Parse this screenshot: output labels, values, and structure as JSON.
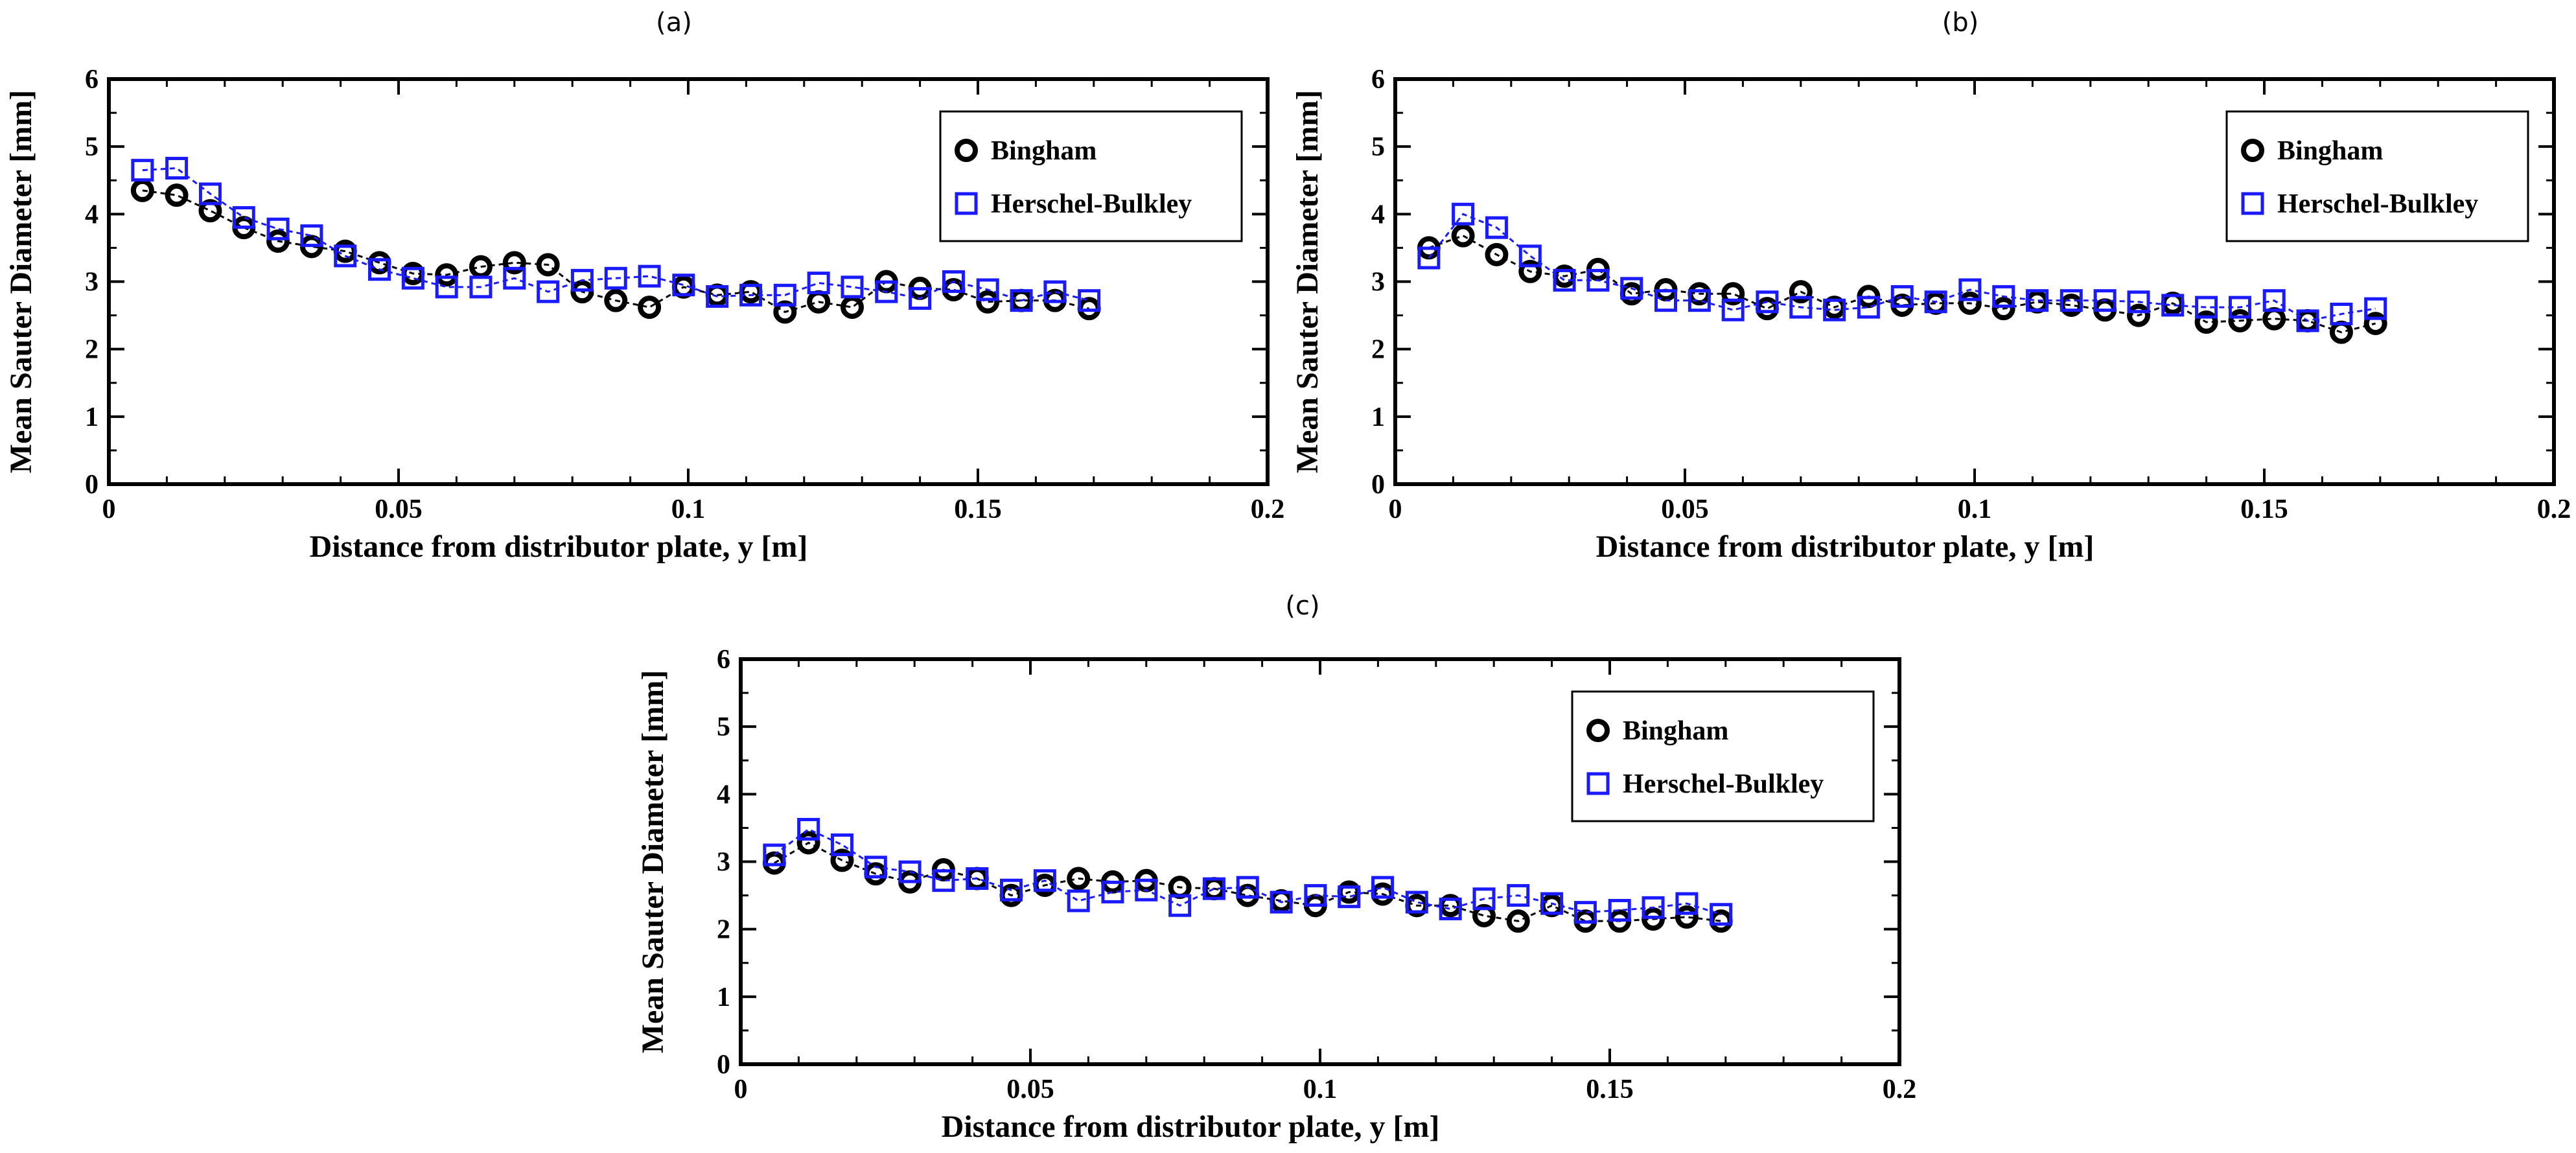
{
  "panels": [
    {
      "label": "(a)"
    },
    {
      "label": "(b)"
    },
    {
      "label": "(c)"
    }
  ],
  "colors": {
    "bingham": "#000000",
    "herschel_bulkley": "#1a1aff",
    "axis": "#000000"
  },
  "chart_data": [
    {
      "type": "scatter",
      "title": "(a)",
      "xlabel": "Distance from distributor plate, y [m]",
      "ylabel": "Mean Sauter Diameter [mm]",
      "xlim": [
        0,
        0.2
      ],
      "ylim": [
        0,
        6
      ],
      "xticks": [
        "0",
        "0.05",
        "0.1",
        "0.15",
        "0.2"
      ],
      "yticks": [
        "0",
        "1",
        "2",
        "3",
        "4",
        "5",
        "6"
      ],
      "legend_position": "top-right",
      "series": [
        {
          "name": "Bingham",
          "marker": "circle",
          "x": [
            0.0058,
            0.0117,
            0.0175,
            0.0233,
            0.0292,
            0.035,
            0.0408,
            0.0467,
            0.0525,
            0.0583,
            0.0642,
            0.07,
            0.0758,
            0.0817,
            0.0875,
            0.0933,
            0.0992,
            0.105,
            0.1108,
            0.1167,
            0.1225,
            0.1283,
            0.1342,
            0.14,
            0.1458,
            0.1517,
            0.1575,
            0.1633,
            0.1692
          ],
          "y": [
            4.35,
            4.28,
            4.05,
            3.8,
            3.6,
            3.52,
            3.45,
            3.28,
            3.12,
            3.1,
            3.22,
            3.28,
            3.25,
            2.85,
            2.72,
            2.62,
            2.92,
            2.8,
            2.85,
            2.55,
            2.7,
            2.62,
            3.0,
            2.9,
            2.88,
            2.7,
            2.72,
            2.72,
            2.6
          ]
        },
        {
          "name": "Herschel-Bulkley",
          "marker": "square",
          "x": [
            0.0058,
            0.0117,
            0.0175,
            0.0233,
            0.0292,
            0.035,
            0.0408,
            0.0467,
            0.0525,
            0.0583,
            0.0642,
            0.07,
            0.0758,
            0.0817,
            0.0875,
            0.0933,
            0.0992,
            0.105,
            0.1108,
            0.1167,
            0.1225,
            0.1283,
            0.1342,
            0.14,
            0.1458,
            0.1517,
            0.1575,
            0.1633,
            0.1692
          ],
          "y": [
            4.65,
            4.68,
            4.3,
            3.95,
            3.78,
            3.68,
            3.38,
            3.18,
            3.05,
            2.92,
            2.92,
            3.05,
            2.85,
            3.02,
            3.05,
            3.08,
            2.95,
            2.78,
            2.8,
            2.8,
            2.98,
            2.92,
            2.85,
            2.75,
            3.0,
            2.88,
            2.72,
            2.85,
            2.72
          ]
        }
      ]
    },
    {
      "type": "scatter",
      "title": "(b)",
      "xlabel": "Distance from distributor plate, y [m]",
      "ylabel": "Mean Sauter Diameter [mm]",
      "xlim": [
        0,
        0.2
      ],
      "ylim": [
        0,
        6
      ],
      "xticks": [
        "0",
        "0.05",
        "0.1",
        "0.15",
        "0.2"
      ],
      "yticks": [
        "0",
        "1",
        "2",
        "3",
        "4",
        "5",
        "6"
      ],
      "legend_position": "top-right",
      "series": [
        {
          "name": "Bingham",
          "marker": "circle",
          "x": [
            0.0058,
            0.0117,
            0.0175,
            0.0233,
            0.0292,
            0.035,
            0.0408,
            0.0467,
            0.0525,
            0.0583,
            0.0642,
            0.07,
            0.0758,
            0.0817,
            0.0875,
            0.0933,
            0.0992,
            0.105,
            0.1108,
            0.1167,
            0.1225,
            0.1283,
            0.1342,
            0.14,
            0.1458,
            0.1517,
            0.1575,
            0.1633,
            0.1692
          ],
          "y": [
            3.5,
            3.68,
            3.4,
            3.15,
            3.08,
            3.18,
            2.82,
            2.88,
            2.82,
            2.82,
            2.6,
            2.85,
            2.62,
            2.78,
            2.65,
            2.68,
            2.68,
            2.6,
            2.7,
            2.65,
            2.58,
            2.5,
            2.68,
            2.4,
            2.42,
            2.45,
            2.42,
            2.25,
            2.38
          ]
        },
        {
          "name": "Herschel-Bulkley",
          "marker": "square",
          "x": [
            0.0058,
            0.0117,
            0.0175,
            0.0233,
            0.0292,
            0.035,
            0.0408,
            0.0467,
            0.0525,
            0.0583,
            0.0642,
            0.07,
            0.0758,
            0.0817,
            0.0875,
            0.0933,
            0.0992,
            0.105,
            0.1108,
            0.1167,
            0.1225,
            0.1283,
            0.1342,
            0.14,
            0.1458,
            0.1517,
            0.1575,
            0.1633,
            0.1692
          ],
          "y": [
            3.35,
            4.0,
            3.8,
            3.38,
            3.02,
            3.02,
            2.9,
            2.72,
            2.72,
            2.58,
            2.7,
            2.62,
            2.58,
            2.62,
            2.78,
            2.7,
            2.88,
            2.78,
            2.72,
            2.72,
            2.72,
            2.7,
            2.65,
            2.62,
            2.62,
            2.72,
            2.42,
            2.52,
            2.6
          ]
        }
      ]
    },
    {
      "type": "scatter",
      "title": "(c)",
      "xlabel": "Distance from distributor plate, y [m]",
      "ylabel": "Mean Sauter Diameter [mm]",
      "xlim": [
        0,
        0.2
      ],
      "ylim": [
        0,
        6
      ],
      "xticks": [
        "0",
        "0.05",
        "0.1",
        "0.15",
        "0.2"
      ],
      "yticks": [
        "0",
        "1",
        "2",
        "3",
        "4",
        "5",
        "6"
      ],
      "legend_position": "top-right",
      "series": [
        {
          "name": "Bingham",
          "marker": "circle",
          "x": [
            0.0058,
            0.0117,
            0.0175,
            0.0233,
            0.0292,
            0.035,
            0.0408,
            0.0467,
            0.0525,
            0.0583,
            0.0642,
            0.07,
            0.0758,
            0.0817,
            0.0875,
            0.0933,
            0.0992,
            0.105,
            0.1108,
            0.1167,
            0.1225,
            0.1283,
            0.1342,
            0.14,
            0.1458,
            0.1517,
            0.1575,
            0.1633,
            0.1692
          ],
          "y": [
            2.98,
            3.28,
            3.02,
            2.82,
            2.7,
            2.88,
            2.75,
            2.5,
            2.65,
            2.75,
            2.7,
            2.72,
            2.62,
            2.6,
            2.5,
            2.42,
            2.35,
            2.55,
            2.52,
            2.35,
            2.35,
            2.2,
            2.12,
            2.35,
            2.12,
            2.12,
            2.15,
            2.18,
            2.12
          ]
        },
        {
          "name": "Herschel-Bulkley",
          "marker": "square",
          "x": [
            0.0058,
            0.0117,
            0.0175,
            0.0233,
            0.0292,
            0.035,
            0.0408,
            0.0467,
            0.0525,
            0.0583,
            0.0642,
            0.07,
            0.0758,
            0.0817,
            0.0875,
            0.0933,
            0.0992,
            0.105,
            0.1108,
            0.1167,
            0.1225,
            0.1283,
            0.1342,
            0.14,
            0.1458,
            0.1517,
            0.1575,
            0.1633,
            0.1692
          ],
          "y": [
            3.1,
            3.48,
            3.25,
            2.92,
            2.85,
            2.72,
            2.75,
            2.58,
            2.72,
            2.42,
            2.55,
            2.58,
            2.35,
            2.6,
            2.62,
            2.4,
            2.5,
            2.48,
            2.62,
            2.4,
            2.3,
            2.45,
            2.5,
            2.38,
            2.25,
            2.28,
            2.32,
            2.38,
            2.22
          ]
        }
      ]
    }
  ]
}
